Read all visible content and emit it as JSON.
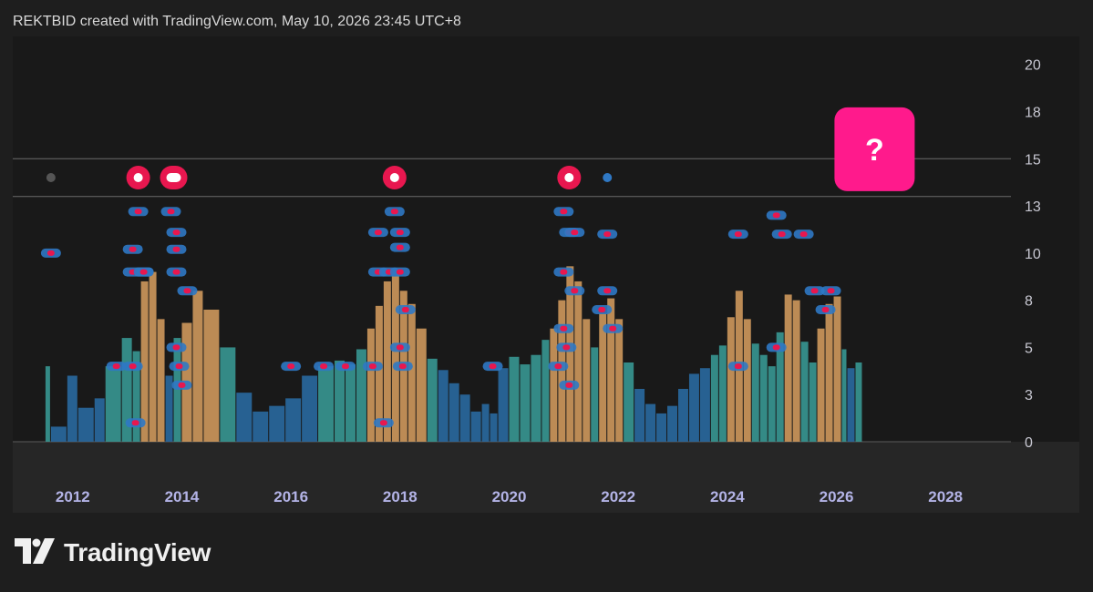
{
  "header": {
    "caption": "REKTBID created with TradingView.com, May 10, 2026 23:45 UTC+8"
  },
  "brand": {
    "name": "TradingView",
    "logo_icon": "tradingview-logo-icon"
  },
  "colors": {
    "background": "#1e1e1e",
    "plot_bg": "#191919",
    "bar_low": "#2a6fa8",
    "bar_mid": "#3a9f9a",
    "bar_high": "#d9a060",
    "dot_red": "#e8174f",
    "dot_blue": "#2f78c4",
    "question_badge": "#ff1a8c"
  },
  "chart_data": {
    "type": "bar",
    "title": "",
    "xlabel": "",
    "ylabel": "",
    "x_range": [
      2010.9,
      2029.2
    ],
    "ylim": [
      0,
      21
    ],
    "y_ticks": [
      "0",
      "3",
      "5",
      "8",
      "10",
      "13",
      "15",
      "18",
      "20"
    ],
    "y_tick_values": [
      0,
      2.5,
      5,
      7.5,
      10,
      12.5,
      15,
      17.5,
      20
    ],
    "x_ticks": [
      "2012",
      "2014",
      "2016",
      "2018",
      "2020",
      "2022",
      "2024",
      "2026",
      "2028"
    ],
    "x_tick_values": [
      2012,
      2014,
      2016,
      2018,
      2020,
      2022,
      2024,
      2026,
      2028
    ],
    "reference_lines": [
      15,
      13
    ],
    "series": [
      {
        "type": "histogram",
        "x": [
          2011.5,
          2011.6,
          2011.9,
          2012.1,
          2012.4,
          2012.6,
          2012.9,
          2013.1,
          2013.25,
          2013.4,
          2013.55,
          2013.7,
          2013.85,
          2014.0,
          2014.2,
          2014.4,
          2014.7,
          2015.0,
          2015.3,
          2015.6,
          2015.9,
          2016.2,
          2016.5,
          2016.8,
          2017.0,
          2017.2,
          2017.4,
          2017.55,
          2017.7,
          2017.85,
          2018.0,
          2018.15,
          2018.3,
          2018.5,
          2018.7,
          2018.9,
          2019.1,
          2019.3,
          2019.5,
          2019.65,
          2019.8,
          2020.0,
          2020.2,
          2020.4,
          2020.6,
          2020.75,
          2020.9,
          2021.05,
          2021.2,
          2021.35,
          2021.5,
          2021.65,
          2021.8,
          2021.95,
          2022.1,
          2022.3,
          2022.5,
          2022.7,
          2022.9,
          2023.1,
          2023.3,
          2023.5,
          2023.7,
          2023.85,
          2024.0,
          2024.15,
          2024.3,
          2024.45,
          2024.6,
          2024.75,
          2024.9,
          2025.05,
          2025.2,
          2025.35,
          2025.5,
          2025.65,
          2025.8,
          2025.95,
          2026.1,
          2026.2,
          2026.35
        ],
        "y": [
          4.0,
          0.8,
          3.5,
          1.8,
          2.3,
          4.0,
          5.5,
          4.8,
          8.5,
          9.0,
          6.5,
          3.5,
          5.5,
          6.3,
          8.0,
          7.0,
          5.0,
          2.6,
          1.6,
          1.9,
          2.3,
          3.5,
          4.0,
          4.3,
          4.1,
          4.9,
          6.0,
          7.2,
          8.5,
          9.1,
          8.0,
          7.3,
          6.0,
          4.4,
          3.8,
          3.1,
          2.5,
          1.6,
          2.0,
          1.5,
          3.9,
          4.5,
          4.1,
          4.6,
          5.4,
          6.0,
          7.5,
          9.3,
          8.5,
          6.5,
          5.0,
          6.8,
          7.6,
          6.5,
          4.2,
          2.8,
          2.0,
          1.5,
          1.9,
          2.8,
          3.6,
          3.9,
          4.6,
          5.1,
          6.6,
          8.0,
          6.5,
          5.2,
          4.6,
          4.0,
          5.8,
          7.8,
          7.5,
          5.3,
          4.2,
          6.0,
          7.3,
          7.7,
          4.9,
          3.9,
          4.2
        ]
      }
    ],
    "dot_levels": [
      {
        "x": [
          2011.6,
          2013.1,
          2013.3,
          2013.9,
          2018.0
        ],
        "y": [
          10.0,
          10.2,
          9.0,
          10.2,
          10.3
        ]
      },
      {
        "x": [
          2013.2,
          2013.8,
          2013.9,
          2017.6,
          2017.9,
          2018.0,
          2021.0,
          2021.1,
          2021.2
        ],
        "y": [
          12.2,
          12.2,
          11.1,
          11.1,
          12.2,
          11.1,
          12.2,
          11.1,
          11.1
        ]
      },
      {
        "x": [
          2013.1,
          2013.3,
          2013.9,
          2014.1,
          2017.6,
          2017.8,
          2018.0,
          2018.1,
          2021.0,
          2021.2
        ],
        "y": [
          9.0,
          9.0,
          9.0,
          8.0,
          9.0,
          9.0,
          9.0,
          7.0,
          9.0,
          8.0
        ]
      },
      {
        "x": [
          2013.1,
          2013.15,
          2013.9,
          2013.95,
          2014.0,
          2017.7,
          2018.0,
          2018.05,
          2021.0,
          2021.05,
          2021.1
        ],
        "y": [
          4.0,
          1.0,
          5.0,
          4.0,
          3.0,
          1.0,
          5.0,
          4.0,
          6.0,
          5.0,
          3.0
        ]
      },
      {
        "x": [
          2012.8,
          2016.0,
          2016.6,
          2017.0,
          2017.5,
          2019.7,
          2020.9,
          2021.8
        ],
        "y": [
          4.0,
          4.0,
          4.0,
          4.0,
          4.0,
          4.0,
          4.0,
          11.0
        ]
      },
      {
        "x": [
          2021.8,
          2021.7,
          2021.9,
          2024.2,
          2024.9,
          2025.0,
          2025.4,
          2025.6,
          2025.8,
          2025.9
        ],
        "y": [
          8.0,
          7.0,
          6.0,
          11.0,
          12.0,
          11.0,
          11.0,
          8.0,
          7.0,
          8.0
        ]
      },
      {
        "x": [
          2024.2,
          2024.9
        ],
        "y": [
          4.0,
          5.0
        ]
      }
    ],
    "top_row_markers": [
      {
        "x": 2011.6,
        "y": 14.0,
        "style": "gray"
      },
      {
        "x": 2013.2,
        "y": 14.0,
        "style": "ring"
      },
      {
        "x": 2013.85,
        "y": 14.0,
        "style": "ring-wide"
      },
      {
        "x": 2017.9,
        "y": 14.0,
        "style": "ring"
      },
      {
        "x": 2021.1,
        "y": 14.0,
        "style": "ring"
      },
      {
        "x": 2021.8,
        "y": 14.0,
        "style": "blue"
      }
    ],
    "question_badge": {
      "x": 2026.7,
      "y": 15.5,
      "label": "?"
    }
  }
}
